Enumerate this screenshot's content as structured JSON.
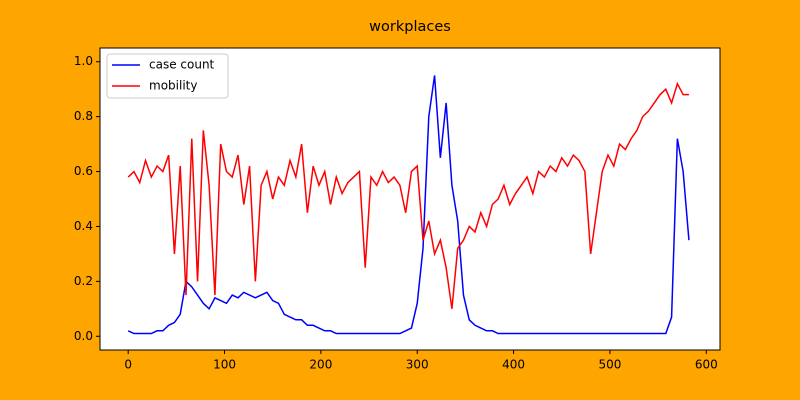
{
  "chart_data": {
    "type": "line",
    "title": "workplaces",
    "x": [
      0,
      6,
      12,
      18,
      24,
      30,
      36,
      42,
      48,
      54,
      60,
      66,
      72,
      78,
      84,
      90,
      96,
      102,
      108,
      114,
      120,
      126,
      132,
      138,
      144,
      150,
      156,
      162,
      168,
      174,
      180,
      186,
      192,
      198,
      204,
      210,
      216,
      222,
      228,
      234,
      240,
      246,
      252,
      258,
      264,
      270,
      276,
      282,
      288,
      294,
      300,
      306,
      312,
      318,
      324,
      330,
      336,
      342,
      348,
      354,
      360,
      366,
      372,
      378,
      384,
      390,
      396,
      402,
      408,
      414,
      420,
      426,
      432,
      438,
      444,
      450,
      456,
      462,
      468,
      474,
      480,
      486,
      492,
      498,
      504,
      510,
      516,
      522,
      528,
      534,
      540,
      546,
      552,
      558,
      564,
      570,
      576,
      582
    ],
    "series": [
      {
        "name": "case count",
        "color": "#0000ff",
        "values": [
          0.02,
          0.01,
          0.01,
          0.01,
          0.01,
          0.02,
          0.02,
          0.04,
          0.05,
          0.08,
          0.2,
          0.18,
          0.15,
          0.12,
          0.1,
          0.14,
          0.13,
          0.12,
          0.15,
          0.14,
          0.16,
          0.15,
          0.14,
          0.15,
          0.16,
          0.13,
          0.12,
          0.08,
          0.07,
          0.06,
          0.06,
          0.04,
          0.04,
          0.03,
          0.02,
          0.02,
          0.01,
          0.01,
          0.01,
          0.01,
          0.01,
          0.01,
          0.01,
          0.01,
          0.01,
          0.01,
          0.01,
          0.01,
          0.02,
          0.03,
          0.12,
          0.32,
          0.8,
          0.95,
          0.65,
          0.85,
          0.55,
          0.42,
          0.15,
          0.06,
          0.04,
          0.03,
          0.02,
          0.02,
          0.01,
          0.01,
          0.01,
          0.01,
          0.01,
          0.01,
          0.01,
          0.01,
          0.01,
          0.01,
          0.01,
          0.01,
          0.01,
          0.01,
          0.01,
          0.01,
          0.01,
          0.01,
          0.01,
          0.01,
          0.01,
          0.01,
          0.01,
          0.01,
          0.01,
          0.01,
          0.01,
          0.01,
          0.01,
          0.01,
          0.07,
          0.72,
          0.6,
          0.35
        ]
      },
      {
        "name": "mobility",
        "color": "#ff0000",
        "values": [
          0.58,
          0.6,
          0.56,
          0.64,
          0.58,
          0.62,
          0.6,
          0.66,
          0.3,
          0.62,
          0.15,
          0.72,
          0.2,
          0.75,
          0.55,
          0.15,
          0.7,
          0.6,
          0.58,
          0.66,
          0.48,
          0.62,
          0.2,
          0.55,
          0.6,
          0.5,
          0.58,
          0.55,
          0.64,
          0.58,
          0.7,
          0.45,
          0.62,
          0.55,
          0.6,
          0.48,
          0.58,
          0.52,
          0.56,
          0.58,
          0.6,
          0.25,
          0.58,
          0.55,
          0.6,
          0.56,
          0.58,
          0.55,
          0.45,
          0.6,
          0.62,
          0.35,
          0.42,
          0.3,
          0.35,
          0.25,
          0.1,
          0.32,
          0.35,
          0.4,
          0.38,
          0.45,
          0.4,
          0.48,
          0.5,
          0.55,
          0.48,
          0.52,
          0.55,
          0.58,
          0.52,
          0.6,
          0.58,
          0.62,
          0.6,
          0.65,
          0.62,
          0.66,
          0.64,
          0.6,
          0.3,
          0.45,
          0.6,
          0.66,
          0.62,
          0.7,
          0.68,
          0.72,
          0.75,
          0.8,
          0.82,
          0.85,
          0.88,
          0.9,
          0.85,
          0.92,
          0.88,
          0.88
        ]
      }
    ],
    "xlim": [
      -29.25,
      614.25
    ],
    "xticks": [
      0,
      100,
      200,
      300,
      400,
      500,
      600
    ],
    "ylim": [
      -0.05,
      1.05
    ],
    "yticks": [
      {
        "value": 0,
        "label": "0.0"
      },
      0.2,
      0.4,
      0.6,
      0.8,
      {
        "value": 1,
        "label": "1.0"
      }
    ],
    "legend": "upper left",
    "background": "#ffa500"
  }
}
